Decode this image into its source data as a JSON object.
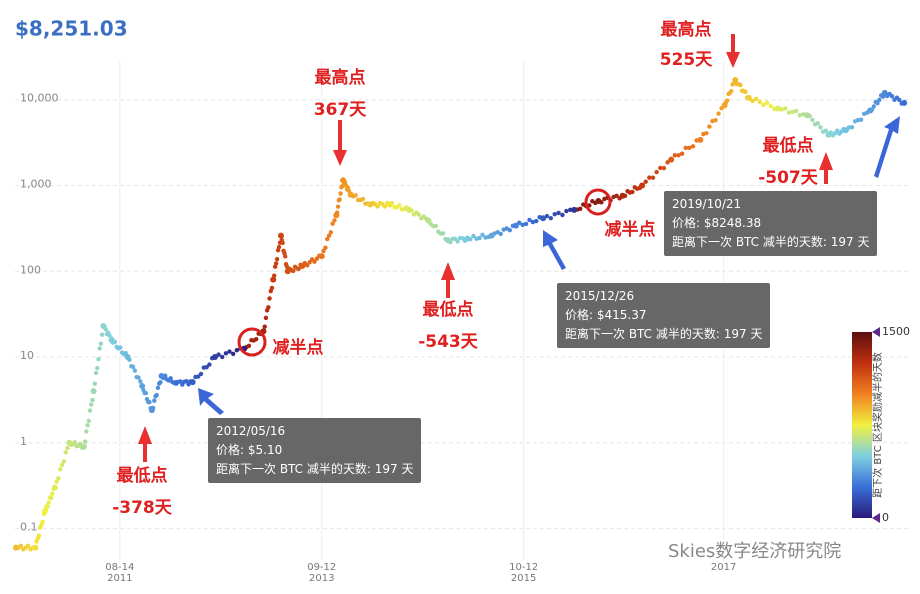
{
  "chart_data": {
    "type": "scatter",
    "title": "$8,251.03",
    "yscale": "log",
    "grid": true,
    "xlim": [
      2010.54,
      2019.76
    ],
    "ylim": [
      0.043,
      38000
    ],
    "xticks": [
      {
        "value": 2011.62,
        "label": "08-14\n2011"
      },
      {
        "value": 2013.7,
        "label": "09-12\n2013"
      },
      {
        "value": 2015.78,
        "label": "10-12\n2015"
      },
      {
        "value": 2017.84,
        "label": "2017"
      }
    ],
    "yticks": [
      {
        "value": 0.1,
        "label": "0.1"
      },
      1,
      10,
      100,
      {
        "value": 1000,
        "label": "1,000"
      },
      {
        "value": 10000,
        "label": "10,000"
      }
    ],
    "colormap": [
      "#2a1a7a",
      "#3a6fd8",
      "#7fd0e0",
      "#f0f040",
      "#f08020",
      "#c03010",
      "#5a0f10"
    ],
    "clim": [
      0,
      1500
    ],
    "colorbar_title": "距下次 BTC 区块奖励减半的天数",
    "colorbar_ticks": [
      1500,
      0
    ],
    "series": [
      {
        "x": [
          2010.55,
          2010.75,
          2010.85,
          2010.95,
          2011.1,
          2011.25,
          2011.35,
          2011.45,
          2011.55,
          2011.7,
          2011.85,
          2011.95,
          2012.05,
          2012.2,
          2012.37,
          2012.6,
          2012.9,
          2013.1,
          2013.2,
          2013.28,
          2013.35,
          2013.5,
          2013.7,
          2013.85,
          2013.92,
          2014.0,
          2014.2,
          2014.4,
          2014.6,
          2014.8,
          2015.0,
          2015.2,
          2015.45,
          2015.7,
          2015.98,
          2016.3,
          2016.55,
          2016.8,
          2017.0,
          2017.3,
          2017.6,
          2017.85,
          2017.96,
          2018.1,
          2018.4,
          2018.7,
          2018.92,
          2019.1,
          2019.35,
          2019.5,
          2019.7
        ],
        "values": [
          0.06,
          0.06,
          0.16,
          0.3,
          1,
          0.9,
          4,
          23,
          15,
          10,
          4.6,
          2.4,
          6,
          5,
          5.1,
          10,
          12.5,
          20,
          80,
          260,
          100,
          115,
          150,
          450,
          1150,
          780,
          600,
          600,
          520,
          390,
          230,
          240,
          260,
          340,
          415,
          520,
          660,
          760,
          1000,
          2000,
          3400,
          8600,
          17000,
          10500,
          7900,
          6600,
          3900,
          4400,
          7500,
          12000,
          9200
        ],
        "days": [
          861,
          788,
          752,
          715,
          661,
          606,
          569,
          533,
          496,
          442,
          387,
          350,
          314,
          259,
          197,
          113,
          4,
          1321,
          1212,
          1183,
          1154,
          1110,
          1037,
          982,
          957,
          920,
          847,
          774,
          701,
          628,
          555,
          482,
          391,
          299,
          197,
          80,
          1391,
          1300,
          1227,
          1117,
          1007,
          916,
          876,
          825,
          715,
          606,
          526,
          460,
          369,
          314,
          241
        ]
      }
    ],
    "annotations": [
      "最高点",
      "367天",
      "最低点",
      "-543天",
      "减半点",
      "最低点",
      "-378天",
      "最高点",
      "525天",
      "最低点",
      "-507天",
      "减半点"
    ],
    "tooltips": [
      {
        "date": "2012/05/16",
        "price": "价格: $5.10",
        "days": "距离下一次 BTC 减半的天数: 197 天"
      },
      {
        "date": "2015/12/26",
        "price": "价格: $415.37",
        "days": "距离下一次 BTC 减半的天数: 197 天"
      },
      {
        "date": "2019/10/21",
        "price": "价格: $8248.38",
        "days": "距离下一次 BTC 减半的天数: 197 天"
      }
    ],
    "watermark": "Skies数字经济研究院"
  }
}
